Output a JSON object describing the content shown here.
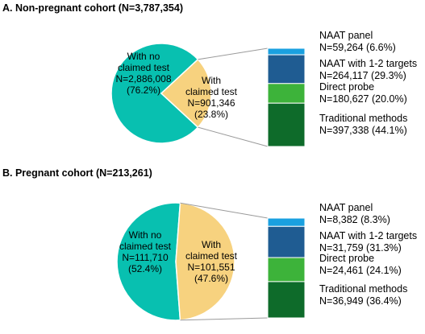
{
  "chart_data": [
    {
      "type": "pie",
      "title": "A. Non-pregnant cohort (N=3,787,354)",
      "slices": [
        {
          "label_lines": [
            "With no",
            "claimed test",
            "N=2,886,008",
            "(76.2%)"
          ],
          "n": 2886008,
          "percent": 76.2,
          "color": "#08C0B0"
        },
        {
          "label_lines": [
            "With",
            "claimed test",
            "N=901,346",
            "(23.8%)"
          ],
          "n": 901346,
          "percent": 23.8,
          "color": "#F7D27F"
        }
      ],
      "breakdown_of": "claimed test",
      "stack": [
        {
          "name": "NAAT panel",
          "value_label": "N=59,264 (6.6%)",
          "n": 59264,
          "percent": 6.6,
          "color": "#1AA0E0"
        },
        {
          "name": "NAAT with 1-2 targets",
          "value_label": "N=264,117 (29.3%)",
          "n": 264117,
          "percent": 29.3,
          "color": "#1F5C92"
        },
        {
          "name": "Direct probe",
          "value_label": "N=180,627 (20.0%)",
          "n": 180627,
          "percent": 20.0,
          "color": "#3DB33A"
        },
        {
          "name": "Traditional methods",
          "value_label": "N=397,338 (44.1%)",
          "n": 397338,
          "percent": 44.1,
          "color": "#0E6B2A"
        }
      ]
    },
    {
      "type": "pie",
      "title": "B. Pregnant cohort (N=213,261)",
      "slices": [
        {
          "label_lines": [
            "With no",
            "claimed test",
            "N=111,710",
            "(52.4%)"
          ],
          "n": 111710,
          "percent": 52.4,
          "color": "#08C0B0"
        },
        {
          "label_lines": [
            "With",
            "claimed test",
            "N=101,551",
            "(47.6%)"
          ],
          "n": 101551,
          "percent": 47.6,
          "color": "#F7D27F"
        }
      ],
      "breakdown_of": "claimed test",
      "stack": [
        {
          "name": "NAAT panel",
          "value_label": "N=8,382 (8.3%)",
          "n": 8382,
          "percent": 8.3,
          "color": "#1AA0E0"
        },
        {
          "name": "NAAT with 1-2 targets",
          "value_label": "N=31,759 (31.3%)",
          "n": 31759,
          "percent": 31.3,
          "color": "#1F5C92"
        },
        {
          "name": "Direct probe",
          "value_label": "N=24,461 (24.1%)",
          "n": 24461,
          "percent": 24.1,
          "color": "#3DB33A"
        },
        {
          "name": "Traditional methods",
          "value_label": "N=36,949 (36.4%)",
          "n": 36949,
          "percent": 36.4,
          "color": "#0E6B2A"
        }
      ]
    }
  ]
}
